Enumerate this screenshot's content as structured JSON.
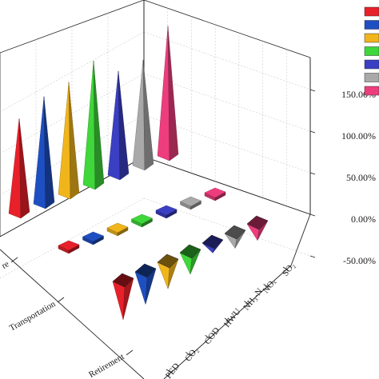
{
  "chart_data": {
    "type": "bar3d",
    "z_axis": {
      "ticks": [
        "150.00%",
        "100.00%",
        "50.00%",
        "0.00%",
        "-50.00%"
      ],
      "tick_values": [
        150,
        100,
        50,
        0,
        -50
      ],
      "range": [
        -60,
        170
      ]
    },
    "categories": [
      "PED",
      "CO₂",
      "COD",
      "HWU",
      "NH₃-N",
      "NOₓ",
      "SO₂"
    ],
    "stages": [
      "Retirement",
      "Transportation",
      "re"
    ],
    "series": [
      {
        "stage": "re",
        "values": [
          115,
          130,
          136,
          150,
          126,
          128,
          157
        ]
      },
      {
        "stage": "Transportation",
        "values": [
          -6,
          -6,
          -5,
          -4,
          -4,
          -4,
          -4
        ]
      },
      {
        "stage": "Retirement",
        "values": [
          -42,
          -35,
          -28,
          -22,
          -8,
          -14,
          -16
        ]
      }
    ],
    "colors": [
      "#e8202a",
      "#1e4fc2",
      "#f1b51c",
      "#3fd73a",
      "#3a3fc4",
      "#a9a9a9",
      "#ee3d7d"
    ],
    "legend_placement": "top-right",
    "grid": true
  }
}
